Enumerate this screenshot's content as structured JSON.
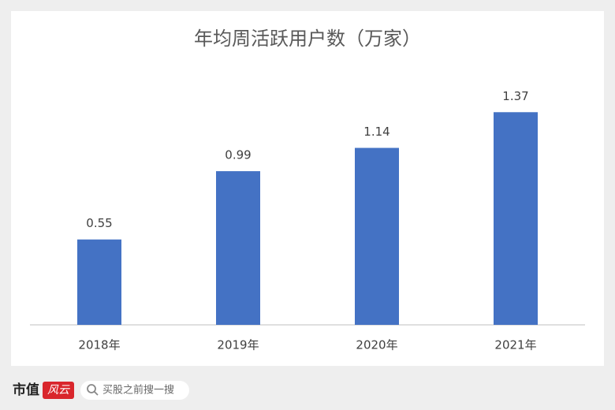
{
  "chart_data": {
    "type": "bar",
    "title": "年均周活跃用户数（万家）",
    "categories": [
      "2018年",
      "2019年",
      "2020年",
      "2021年"
    ],
    "values": [
      0.55,
      0.99,
      1.14,
      1.37
    ],
    "color": "#4472c4",
    "ylim": [
      0,
      1.6
    ],
    "grid": false
  },
  "footer": {
    "brand": "市值",
    "brand_badge": "风云",
    "search_placeholder": "买股之前搜一搜"
  }
}
